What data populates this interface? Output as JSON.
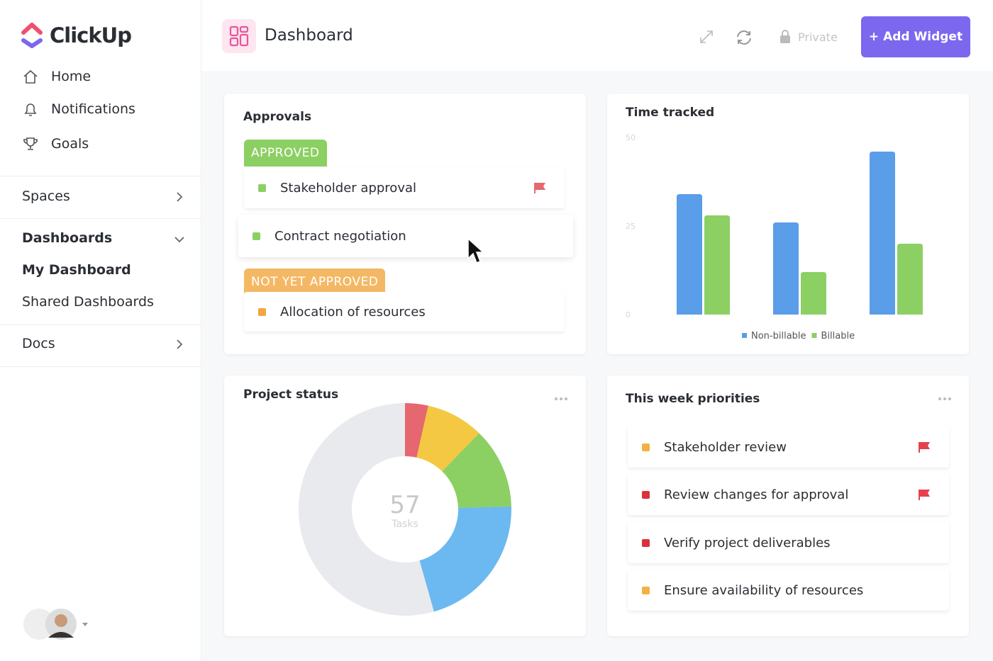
{
  "sidebar": {
    "brand": "ClickUp",
    "nav": [
      "Home",
      "Notifications",
      "Goals"
    ],
    "spaces": "Spaces",
    "dashboards": "Dashboards",
    "dashboard_items": [
      "My Dashboard",
      "Shared Dashboards"
    ],
    "docs": "Docs"
  },
  "header": {
    "title": "Dashboard",
    "private": "Private",
    "add_widget": "+ Add Widget"
  },
  "approvals": {
    "title": "Approvals",
    "groups": [
      {
        "status": "APPROVED",
        "items": [
          "Stakeholder approval",
          "Contract negotiation"
        ]
      },
      {
        "status": "NOT YET APPROVED",
        "items": [
          "Allocation of resources"
        ]
      }
    ]
  },
  "priorities": {
    "title": "This week priorities",
    "items": [
      "Stakeholder review",
      "Review changes for approval",
      "Verify project deliverables",
      "Ensure availability of resources"
    ]
  },
  "chart_data": [
    {
      "type": "bar",
      "title": "Time tracked",
      "categories": [
        null,
        null,
        null
      ],
      "series": [
        {
          "name": "Non-billable",
          "color": "#5a9de8",
          "values": [
            34,
            26,
            46
          ]
        },
        {
          "name": "Billable",
          "color": "#8ccf63",
          "values": [
            28,
            12,
            20
          ]
        }
      ],
      "ylim": [
        0,
        50
      ],
      "yticks": [
        0,
        25,
        50
      ],
      "legend": "bottom"
    },
    {
      "type": "pie",
      "title": "Project status",
      "values": [
        2,
        5,
        7,
        12,
        31
      ],
      "colors": [
        "#e5676f",
        "#f4c842",
        "#8ccf63",
        "#6bb9f0",
        "#e9eaee"
      ],
      "center_value": 57,
      "center_label": "Tasks"
    }
  ]
}
